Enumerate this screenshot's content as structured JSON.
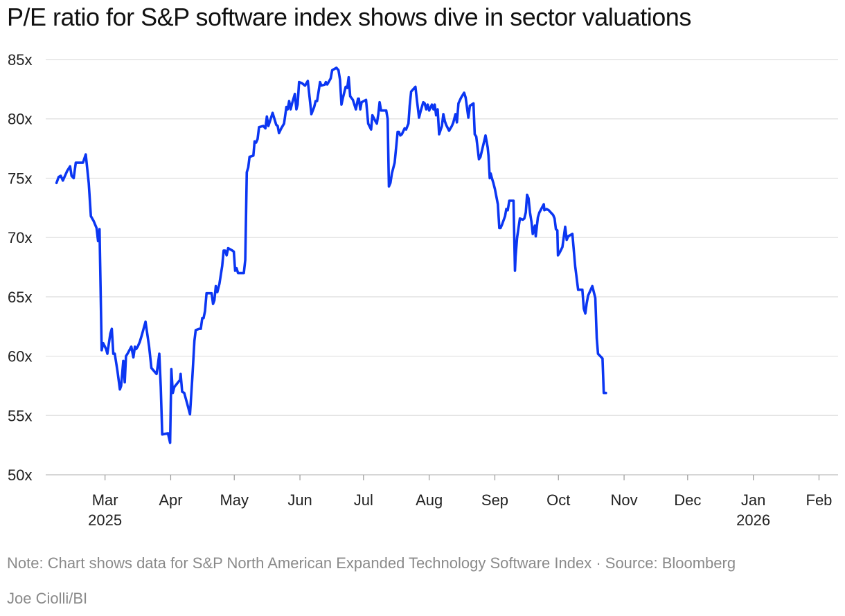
{
  "chart_data": {
    "type": "line",
    "title": "P/E ratio for S&P software index shows dive in sector valuations",
    "xlabel": "",
    "ylabel": "",
    "ylim": [
      50,
      85
    ],
    "yticks": [
      50,
      55,
      60,
      65,
      70,
      75,
      80,
      85
    ],
    "ytick_suffix": "x",
    "grid": true,
    "xlim_days": [
      0,
      374
    ],
    "x_unit": "days since 2025-02-01",
    "xticks": [
      {
        "day": 28,
        "label": "Mar",
        "year": "2025"
      },
      {
        "day": 59,
        "label": "Apr",
        "year": ""
      },
      {
        "day": 89,
        "label": "May",
        "year": ""
      },
      {
        "day": 120,
        "label": "Jun",
        "year": ""
      },
      {
        "day": 150,
        "label": "Jul",
        "year": ""
      },
      {
        "day": 181,
        "label": "Aug",
        "year": ""
      },
      {
        "day": 212,
        "label": "Sep",
        "year": ""
      },
      {
        "day": 242,
        "label": "Oct",
        "year": ""
      },
      {
        "day": 273,
        "label": "Nov",
        "year": ""
      },
      {
        "day": 303,
        "label": "Dec",
        "year": ""
      },
      {
        "day": 334,
        "label": "Jan",
        "year": "2026"
      },
      {
        "day": 365,
        "label": "Feb",
        "year": ""
      }
    ],
    "series": [
      {
        "name": "S&P North American Expanded Technology Software Index P/E",
        "color": "#0b36f2",
        "points": [
          [
            5.1,
            74.6
          ],
          [
            6.1,
            75.1
          ],
          [
            7.1,
            75.2
          ],
          [
            8.1,
            74.8
          ],
          [
            10.1,
            75.6
          ],
          [
            11.5,
            76.0
          ],
          [
            12.2,
            75.2
          ],
          [
            13.2,
            75.0
          ],
          [
            14.2,
            76.3
          ],
          [
            15.5,
            76.3
          ],
          [
            16.2,
            76.3
          ],
          [
            17.6,
            76.3
          ],
          [
            18.9,
            77.0
          ],
          [
            20.3,
            74.6
          ],
          [
            21.3,
            71.8
          ],
          [
            22.6,
            71.4
          ],
          [
            24.0,
            70.8
          ],
          [
            24.7,
            69.7
          ],
          [
            25.4,
            70.7
          ],
          [
            26.4,
            60.5
          ],
          [
            27.1,
            61.1
          ],
          [
            28.5,
            60.6
          ],
          [
            29.1,
            60.2
          ],
          [
            30.5,
            61.9
          ],
          [
            31.2,
            62.3
          ],
          [
            31.9,
            60.2
          ],
          [
            32.6,
            60.2
          ],
          [
            33.9,
            58.7
          ],
          [
            35.0,
            57.2
          ],
          [
            35.6,
            57.5
          ],
          [
            36.6,
            59.6
          ],
          [
            37.3,
            57.8
          ],
          [
            37.9,
            60.0
          ],
          [
            38.6,
            60.2
          ],
          [
            40.4,
            60.8
          ],
          [
            41.4,
            59.9
          ],
          [
            42.1,
            60.8
          ],
          [
            42.7,
            60.6
          ],
          [
            43.4,
            60.8
          ],
          [
            44.4,
            61.2
          ],
          [
            45.4,
            61.8
          ],
          [
            47.1,
            62.9
          ],
          [
            48.8,
            60.8
          ],
          [
            49.9,
            59.0
          ],
          [
            52.3,
            58.5
          ],
          [
            52.9,
            59.2
          ],
          [
            53.6,
            60.2
          ],
          [
            54.3,
            57.4
          ],
          [
            55.0,
            53.4
          ],
          [
            57.7,
            53.5
          ],
          [
            58.7,
            52.7
          ],
          [
            59.3,
            58.9
          ],
          [
            60.0,
            56.9
          ],
          [
            60.7,
            57.4
          ],
          [
            63.4,
            58.0
          ],
          [
            63.7,
            58.5
          ],
          [
            64.4,
            57.0
          ],
          [
            65.4,
            56.9
          ],
          [
            67.1,
            55.8
          ],
          [
            68.1,
            55.1
          ],
          [
            69.2,
            58.2
          ],
          [
            70.2,
            61.3
          ],
          [
            70.8,
            62.2
          ],
          [
            72.5,
            62.3
          ],
          [
            73.2,
            62.3
          ],
          [
            73.9,
            63.2
          ],
          [
            74.5,
            63.2
          ],
          [
            75.2,
            63.8
          ],
          [
            75.9,
            65.3
          ],
          [
            78.3,
            65.3
          ],
          [
            79.0,
            64.4
          ],
          [
            79.6,
            64.7
          ],
          [
            80.3,
            65.9
          ],
          [
            81.0,
            65.4
          ],
          [
            82.0,
            66.1
          ],
          [
            83.3,
            67.6
          ],
          [
            84.0,
            68.9
          ],
          [
            84.7,
            68.9
          ],
          [
            85.4,
            68.5
          ],
          [
            86.1,
            69.1
          ],
          [
            88.1,
            68.9
          ],
          [
            88.8,
            68.8
          ],
          [
            89.4,
            67.2
          ],
          [
            90.1,
            67.4
          ],
          [
            90.8,
            67.0
          ],
          [
            93.5,
            67.0
          ],
          [
            94.2,
            68.1
          ],
          [
            94.9,
            75.5
          ],
          [
            95.6,
            75.9
          ],
          [
            96.2,
            76.8
          ],
          [
            98.0,
            76.9
          ],
          [
            98.6,
            78.1
          ],
          [
            99.3,
            78.0
          ],
          [
            100.0,
            78.3
          ],
          [
            100.7,
            79.3
          ],
          [
            102.7,
            79.4
          ],
          [
            103.7,
            79.2
          ],
          [
            104.4,
            80.2
          ],
          [
            105.1,
            79.4
          ],
          [
            107.1,
            80.5
          ],
          [
            108.8,
            79.5
          ],
          [
            109.5,
            79.4
          ],
          [
            110.1,
            78.8
          ],
          [
            111.2,
            79.2
          ],
          [
            112.5,
            79.6
          ],
          [
            113.6,
            81.0
          ],
          [
            114.2,
            80.8
          ],
          [
            114.9,
            81.5
          ],
          [
            115.6,
            80.8
          ],
          [
            116.3,
            81.3
          ],
          [
            117.6,
            82.1
          ],
          [
            118.3,
            80.8
          ],
          [
            118.9,
            81.2
          ],
          [
            119.6,
            83.1
          ],
          [
            121.0,
            83.0
          ],
          [
            122.4,
            82.8
          ],
          [
            123.7,
            83.2
          ],
          [
            125.4,
            80.4
          ],
          [
            126.7,
            81.0
          ],
          [
            127.4,
            81.5
          ],
          [
            128.1,
            81.5
          ],
          [
            129.5,
            83.1
          ],
          [
            130.1,
            82.8
          ],
          [
            131.8,
            82.9
          ],
          [
            132.2,
            83.1
          ],
          [
            132.9,
            82.9
          ],
          [
            134.5,
            83.4
          ],
          [
            135.2,
            84.1
          ],
          [
            137.2,
            84.3
          ],
          [
            138.2,
            84.1
          ],
          [
            138.9,
            83.3
          ],
          [
            139.6,
            81.2
          ],
          [
            140.3,
            81.8
          ],
          [
            141.6,
            82.7
          ],
          [
            142.3,
            82.6
          ],
          [
            143.0,
            83.5
          ],
          [
            143.7,
            81.9
          ],
          [
            145.0,
            81.6
          ],
          [
            146.4,
            80.8
          ],
          [
            147.4,
            81.7
          ],
          [
            147.8,
            81.7
          ],
          [
            148.5,
            80.8
          ],
          [
            149.1,
            81.4
          ],
          [
            151.2,
            81.6
          ],
          [
            152.2,
            79.6
          ],
          [
            153.6,
            79.1
          ],
          [
            154.2,
            80.3
          ],
          [
            155.6,
            79.8
          ],
          [
            156.3,
            79.6
          ],
          [
            157.0,
            80.4
          ],
          [
            157.6,
            81.4
          ],
          [
            158.3,
            80.7
          ],
          [
            160.7,
            80.7
          ],
          [
            161.4,
            80.0
          ],
          [
            162.0,
            74.3
          ],
          [
            162.7,
            74.6
          ],
          [
            163.4,
            75.4
          ],
          [
            164.7,
            76.3
          ],
          [
            166.1,
            78.9
          ],
          [
            166.7,
            78.9
          ],
          [
            167.4,
            78.6
          ],
          [
            168.1,
            78.7
          ],
          [
            169.4,
            79.2
          ],
          [
            170.1,
            79.1
          ],
          [
            171.2,
            79.6
          ],
          [
            171.8,
            81.1
          ],
          [
            172.5,
            82.3
          ],
          [
            174.5,
            82.7
          ],
          [
            175.2,
            81.6
          ],
          [
            176.2,
            80.1
          ],
          [
            176.9,
            80.6
          ],
          [
            178.2,
            81.4
          ],
          [
            178.9,
            81.3
          ],
          [
            179.6,
            80.8
          ],
          [
            180.3,
            81.2
          ],
          [
            181.0,
            80.7
          ],
          [
            182.3,
            81.2
          ],
          [
            183.0,
            80.8
          ],
          [
            183.6,
            81.2
          ],
          [
            184.3,
            80.3
          ],
          [
            185.0,
            80.8
          ],
          [
            185.7,
            78.7
          ],
          [
            187.0,
            79.4
          ],
          [
            187.7,
            80.4
          ],
          [
            188.4,
            79.8
          ],
          [
            189.0,
            79.5
          ],
          [
            190.4,
            79.0
          ],
          [
            191.7,
            79.4
          ],
          [
            192.4,
            79.7
          ],
          [
            193.4,
            80.4
          ],
          [
            194.1,
            79.7
          ],
          [
            194.8,
            81.3
          ],
          [
            196.1,
            81.8
          ],
          [
            197.5,
            82.2
          ],
          [
            198.2,
            81.8
          ],
          [
            199.5,
            80.1
          ],
          [
            200.2,
            81.1
          ],
          [
            201.9,
            81.3
          ],
          [
            202.5,
            78.7
          ],
          [
            203.2,
            78.5
          ],
          [
            204.5,
            76.6
          ],
          [
            205.2,
            76.8
          ],
          [
            207.6,
            78.6
          ],
          [
            208.6,
            77.6
          ],
          [
            209.0,
            76.9
          ],
          [
            209.6,
            75.0
          ],
          [
            210.0,
            75.4
          ],
          [
            210.6,
            75.0
          ],
          [
            211.3,
            74.6
          ],
          [
            212.0,
            74.1
          ],
          [
            213.4,
            72.8
          ],
          [
            214.1,
            70.8
          ],
          [
            214.7,
            70.8
          ],
          [
            215.4,
            71.1
          ],
          [
            216.8,
            71.8
          ],
          [
            217.4,
            72.4
          ],
          [
            218.1,
            72.3
          ],
          [
            218.8,
            73.1
          ],
          [
            220.1,
            73.1
          ],
          [
            220.8,
            73.1
          ],
          [
            221.5,
            67.2
          ],
          [
            221.8,
            68.4
          ],
          [
            222.5,
            70.0
          ],
          [
            223.8,
            71.6
          ],
          [
            225.2,
            71.5
          ],
          [
            225.9,
            71.6
          ],
          [
            226.6,
            72.1
          ],
          [
            227.2,
            73.6
          ],
          [
            227.9,
            73.3
          ],
          [
            228.6,
            72.1
          ],
          [
            229.3,
            71.3
          ],
          [
            229.9,
            70.3
          ],
          [
            230.9,
            71.0
          ],
          [
            231.3,
            70.1
          ],
          [
            232.3,
            71.7
          ],
          [
            233.0,
            72.1
          ],
          [
            235.1,
            72.8
          ],
          [
            235.4,
            72.3
          ],
          [
            236.4,
            72.4
          ],
          [
            237.4,
            72.3
          ],
          [
            239.5,
            71.9
          ],
          [
            240.2,
            71.6
          ],
          [
            240.8,
            70.7
          ],
          [
            241.5,
            70.6
          ],
          [
            241.8,
            68.5
          ],
          [
            242.5,
            68.7
          ],
          [
            243.9,
            69.2
          ],
          [
            245.2,
            70.9
          ],
          [
            245.9,
            69.8
          ],
          [
            246.6,
            70.1
          ],
          [
            248.6,
            70.3
          ],
          [
            249.9,
            67.6
          ],
          [
            251.3,
            65.6
          ],
          [
            253.3,
            65.6
          ],
          [
            254.0,
            64.0
          ],
          [
            254.7,
            63.6
          ],
          [
            255.3,
            64.4
          ],
          [
            256.0,
            65.1
          ],
          [
            258.0,
            65.9
          ],
          [
            259.4,
            64.9
          ],
          [
            260.1,
            61.5
          ],
          [
            260.7,
            60.2
          ],
          [
            262.8,
            59.8
          ],
          [
            263.4,
            56.9
          ],
          [
            264.4,
            56.9
          ]
        ]
      }
    ]
  },
  "footer": {
    "note": "Note: Chart shows data for S&P North American Expanded Technology Software Index · Source: Bloomberg",
    "credit": "Joe Ciolli/BI"
  }
}
